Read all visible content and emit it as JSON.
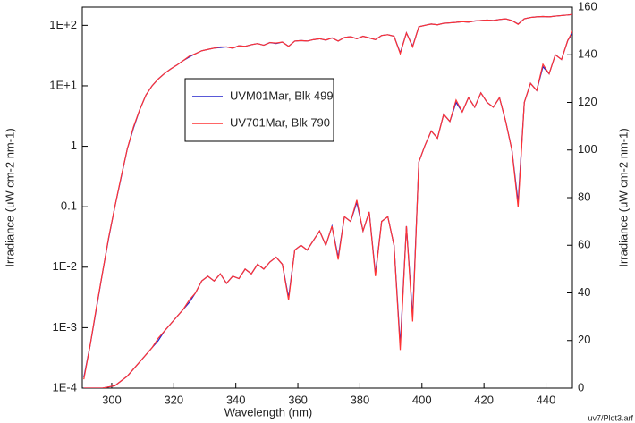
{
  "chart_data": {
    "type": "line",
    "xlabel": "Wavelength (nm)",
    "ylabel": "Irradiance (uW cm-2 nm-1)",
    "y2label": "Irradiance (uW cm-2 nm-1)",
    "footnote": "uv7/Plot3.arf",
    "log_y": true,
    "grid": false,
    "legend": "upper left",
    "xlim": [
      290.5,
      448.5
    ],
    "xticks": [
      300,
      320,
      340,
      360,
      380,
      400,
      420,
      440
    ],
    "ylim": [
      0.0001,
      200
    ],
    "yticks": [
      {
        "value": 0.0001,
        "label": "1E-4"
      },
      {
        "value": 0.001,
        "label": "1E-3"
      },
      {
        "value": 0.01,
        "label": "1E-2"
      },
      0.1,
      1,
      {
        "value": 10,
        "label": "1E+1"
      },
      {
        "value": 100,
        "label": "1E+2"
      }
    ],
    "y2lim": [
      0,
      160
    ],
    "y2ticks": [
      0,
      20,
      40,
      60,
      80,
      100,
      120,
      140,
      160
    ],
    "x": [
      291,
      293,
      295,
      297,
      299,
      301,
      303,
      305,
      307,
      309,
      311,
      313,
      315,
      317,
      319,
      321,
      323,
      325,
      327,
      329,
      331,
      333,
      335,
      337,
      339,
      341,
      343,
      345,
      347,
      349,
      351,
      353,
      355,
      357,
      359,
      361,
      363,
      365,
      367,
      369,
      371,
      373,
      375,
      377,
      379,
      381,
      383,
      385,
      387,
      389,
      391,
      393,
      395,
      397,
      399,
      401,
      403,
      405,
      407,
      409,
      411,
      413,
      415,
      417,
      419,
      421,
      423,
      425,
      427,
      429,
      431,
      433,
      435,
      437,
      439,
      441,
      443,
      445,
      447,
      449
    ],
    "series": [
      {
        "name": "UVM01Mar, Blk 499",
        "color": "#2222cc",
        "values": [
          0.00015,
          0.0005,
          0.002,
          0.008,
          0.03,
          0.1,
          0.3,
          0.9,
          2,
          4,
          7,
          10,
          13,
          16,
          19,
          22,
          26,
          30,
          34,
          38,
          40,
          42,
          43,
          44,
          42,
          46,
          45,
          48,
          50,
          47,
          52,
          50,
          53,
          45,
          55,
          56,
          55,
          58,
          60,
          57,
          62,
          55,
          63,
          65,
          60,
          66,
          62,
          58,
          68,
          70,
          66,
          35,
          75,
          45,
          95,
          100,
          105,
          102,
          108,
          110,
          112,
          115,
          113,
          118,
          120,
          122,
          120,
          125,
          128,
          120,
          105,
          128,
          135,
          138,
          140,
          138,
          142,
          145,
          148,
          152
        ],
        "values_y2": [
          0,
          0,
          0,
          0,
          0.5,
          1,
          3,
          5,
          8,
          11,
          14,
          17,
          20,
          24,
          27,
          30,
          33,
          36,
          40,
          45,
          47,
          45,
          48,
          44,
          47,
          46,
          50,
          48,
          52,
          50,
          53,
          55,
          52,
          38,
          58,
          60,
          58,
          62,
          66,
          60,
          68,
          55,
          72,
          70,
          78,
          66,
          74,
          48,
          70,
          72,
          60,
          18,
          68,
          30,
          95,
          102,
          108,
          105,
          115,
          112,
          120,
          116,
          122,
          118,
          124,
          120,
          118,
          122,
          112,
          100,
          78,
          120,
          128,
          125,
          135,
          132,
          140,
          138,
          146,
          150
        ]
      },
      {
        "name": "UV701Mar, Blk 790",
        "color": "#ff3333",
        "values": [
          0.00014,
          0.0005,
          0.0021,
          0.008,
          0.031,
          0.1,
          0.31,
          0.9,
          2.1,
          4,
          7,
          10,
          13,
          16,
          19,
          22,
          26,
          31,
          34,
          38,
          40,
          42,
          44,
          44,
          42,
          46,
          45,
          48,
          50,
          47,
          52,
          51,
          53,
          45,
          55,
          56,
          55,
          58,
          60,
          57,
          62,
          55,
          63,
          65,
          60,
          66,
          62,
          58,
          68,
          70,
          66,
          34,
          75,
          44,
          95,
          100,
          105,
          102,
          108,
          110,
          112,
          115,
          113,
          118,
          120,
          122,
          120,
          125,
          128,
          120,
          104,
          128,
          135,
          138,
          140,
          138,
          142,
          145,
          148,
          153
        ],
        "values_y2": [
          0,
          0,
          0,
          0,
          0.5,
          1,
          3,
          5,
          8,
          11,
          14,
          17,
          21,
          24,
          27,
          30,
          33,
          37,
          40,
          45,
          47,
          45,
          48,
          44,
          47,
          46,
          50,
          48,
          52,
          50,
          53,
          55,
          52,
          37,
          58,
          60,
          58,
          62,
          66,
          60,
          68,
          54,
          72,
          70,
          79,
          66,
          74,
          47,
          70,
          72,
          60,
          16,
          68,
          28,
          95,
          102,
          108,
          105,
          115,
          112,
          121,
          116,
          122,
          118,
          124,
          120,
          118,
          122,
          112,
          100,
          76,
          120,
          128,
          125,
          136,
          132,
          140,
          138,
          146,
          151
        ]
      }
    ]
  }
}
